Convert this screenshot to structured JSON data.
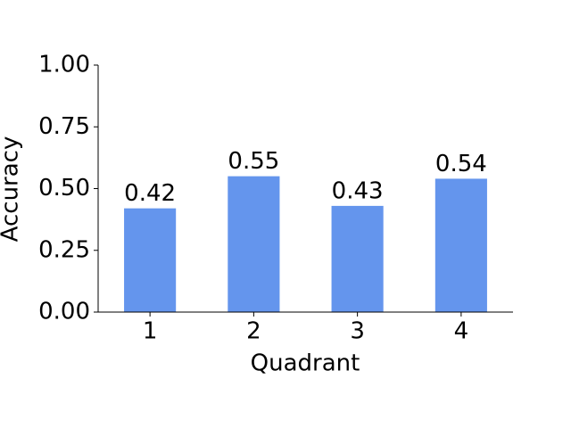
{
  "chart_data": {
    "type": "bar",
    "categories": [
      "1",
      "2",
      "3",
      "4"
    ],
    "values": [
      0.42,
      0.55,
      0.43,
      0.54
    ],
    "color": "#6495ed",
    "xlabel": "Quadrant",
    "ylabel": "Accuracy",
    "ylim": [
      0,
      1
    ],
    "yticks": [
      {
        "value": 0,
        "label": "0.00"
      },
      {
        "value": 0.25,
        "label": "0.25"
      },
      {
        "value": 0.5,
        "label": "0.50"
      },
      {
        "value": 0.75,
        "label": "0.75"
      },
      {
        "value": 1,
        "label": "1.00"
      }
    ]
  }
}
